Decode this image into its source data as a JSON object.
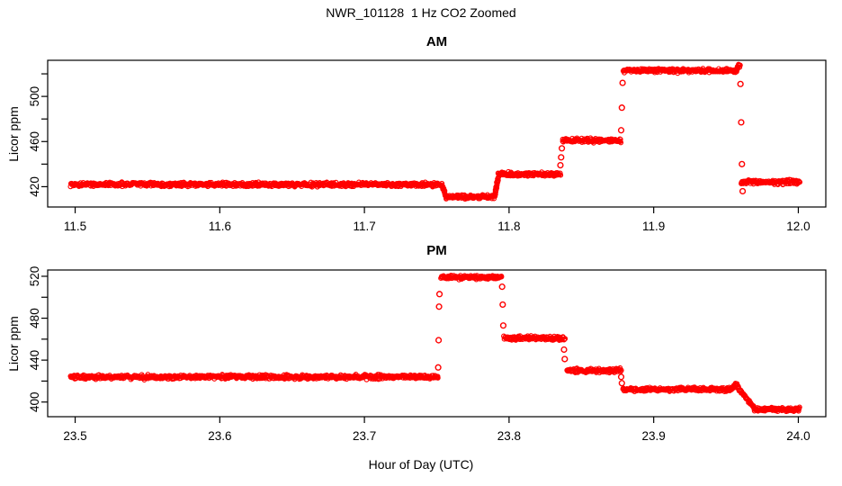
{
  "figure": {
    "title": "NWR_101128  1 Hz CO2 Zoomed",
    "xlabel": "Hour of Day (UTC)",
    "background": "#ffffff",
    "point_color": "#ff0000",
    "axis_color": "#000000"
  },
  "chart_data": [
    {
      "type": "scatter",
      "panel": "AM",
      "title": "AM",
      "ylabel": "Licor ppm",
      "marker": "open-circle",
      "series_color": "#ff0000",
      "grid": false,
      "xlim": [
        11.481,
        12.019
      ],
      "ylim": [
        402,
        532
      ],
      "x_ticks": [
        11.5,
        11.6,
        11.7,
        11.8,
        11.9,
        12.0
      ],
      "x_tick_labels": [
        "11.5",
        "11.6",
        "11.7",
        "11.8",
        "11.9",
        "12.0"
      ],
      "y_ticks_all": [
        420,
        440,
        460,
        480,
        500,
        520
      ],
      "y_ticks_labeled": [
        420,
        460,
        500
      ],
      "segments": [
        {
          "x0": 11.497,
          "x1": 11.7535,
          "y0": 422,
          "y1": 422
        },
        {
          "x0": 11.7535,
          "x1": 11.7565,
          "y0": 422,
          "y1": 411
        },
        {
          "x0": 11.7565,
          "x1": 11.7895,
          "y0": 411,
          "y1": 411
        },
        {
          "x0": 11.79,
          "x1": 11.7925,
          "y0": 412,
          "y1": 428
        },
        {
          "x0": 11.7925,
          "x1": 11.8355,
          "y0": 431,
          "y1": 431
        },
        {
          "x0": 11.837,
          "x1": 11.8775,
          "y0": 461,
          "y1": 461
        },
        {
          "x0": 11.879,
          "x1": 11.9575,
          "y0": 523,
          "y1": 523
        },
        {
          "x0": 11.9575,
          "x1": 11.9597,
          "y0": 524,
          "y1": 528
        },
        {
          "x0": 11.9605,
          "x1": 12.001,
          "y0": 424,
          "y1": 424
        }
      ],
      "transition_points": [
        {
          "x": 11.8355,
          "y": 439
        },
        {
          "x": 11.836,
          "y": 446
        },
        {
          "x": 11.8365,
          "y": 454
        },
        {
          "x": 11.8775,
          "y": 470
        },
        {
          "x": 11.878,
          "y": 490
        },
        {
          "x": 11.8785,
          "y": 512
        },
        {
          "x": 11.96,
          "y": 511
        },
        {
          "x": 11.9605,
          "y": 477
        },
        {
          "x": 11.961,
          "y": 440
        },
        {
          "x": 11.9615,
          "y": 416
        }
      ]
    },
    {
      "type": "scatter",
      "panel": "PM",
      "title": "PM",
      "ylabel": "Licor ppm",
      "marker": "open-circle",
      "series_color": "#ff0000",
      "grid": false,
      "xlim": [
        23.481,
        24.019
      ],
      "ylim": [
        386,
        526
      ],
      "x_ticks": [
        23.5,
        23.6,
        23.7,
        23.8,
        23.9,
        24.0
      ],
      "x_tick_labels": [
        "23.5",
        "23.6",
        "23.7",
        "23.8",
        "23.9",
        "24.0"
      ],
      "y_ticks_all": [
        400,
        420,
        440,
        460,
        480,
        500,
        520
      ],
      "y_ticks_labeled": [
        400,
        440,
        480,
        520
      ],
      "segments": [
        {
          "x0": 23.497,
          "x1": 23.751,
          "y0": 424,
          "y1": 424
        },
        {
          "x0": 23.7528,
          "x1": 23.795,
          "y0": 519,
          "y1": 519
        },
        {
          "x0": 23.7965,
          "x1": 23.8385,
          "y0": 461,
          "y1": 461
        },
        {
          "x0": 23.84,
          "x1": 23.8775,
          "y0": 430,
          "y1": 430
        },
        {
          "x0": 23.8785,
          "x1": 23.954,
          "y0": 412,
          "y1": 412
        },
        {
          "x0": 23.954,
          "x1": 23.9575,
          "y0": 413,
          "y1": 417
        },
        {
          "x0": 23.9575,
          "x1": 23.9695,
          "y0": 415,
          "y1": 394
        },
        {
          "x0": 23.9695,
          "x1": 24.001,
          "y0": 393,
          "y1": 393
        }
      ],
      "transition_points": [
        {
          "x": 23.751,
          "y": 433
        },
        {
          "x": 23.7513,
          "y": 459
        },
        {
          "x": 23.7516,
          "y": 491
        },
        {
          "x": 23.7519,
          "y": 503
        },
        {
          "x": 23.7952,
          "y": 510
        },
        {
          "x": 23.7956,
          "y": 493
        },
        {
          "x": 23.796,
          "y": 473
        },
        {
          "x": 23.838,
          "y": 450
        },
        {
          "x": 23.8385,
          "y": 441
        },
        {
          "x": 23.8775,
          "y": 424
        },
        {
          "x": 23.878,
          "y": 418
        }
      ]
    }
  ]
}
